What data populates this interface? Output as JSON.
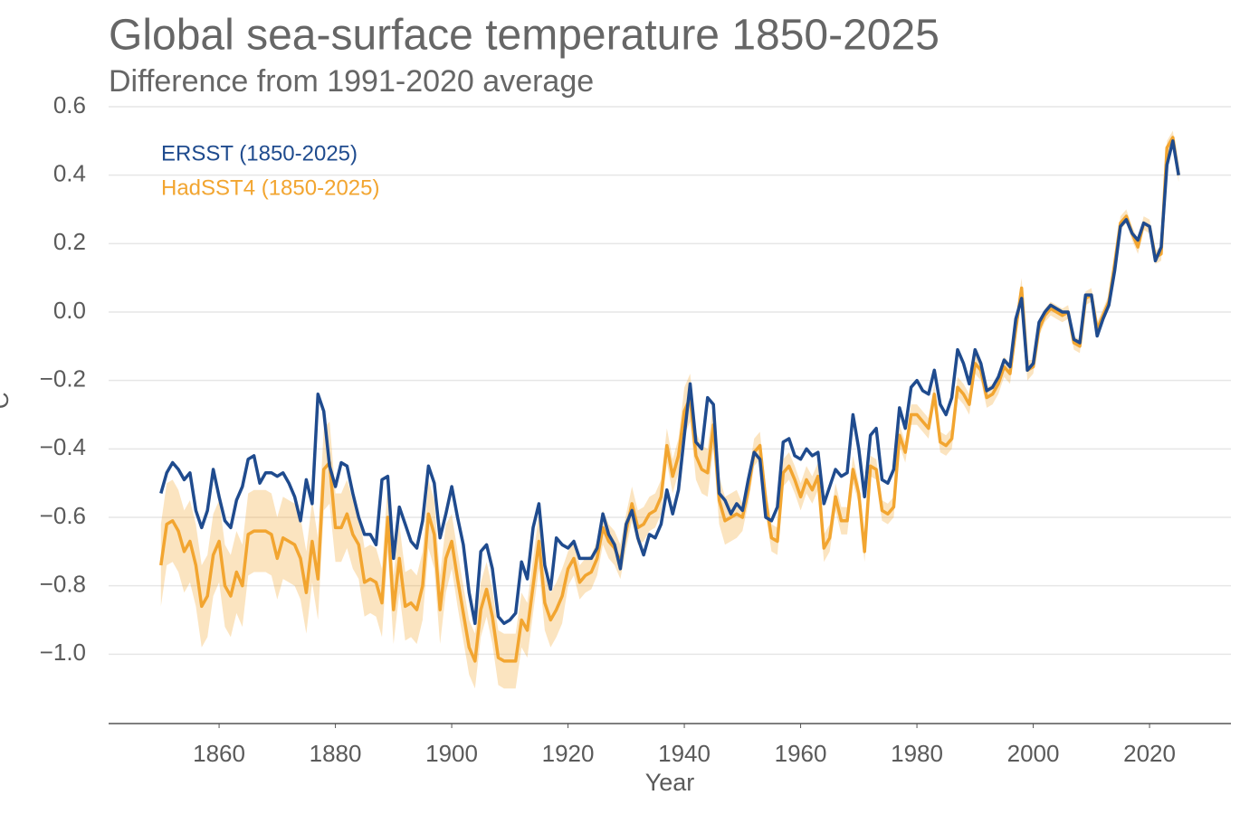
{
  "chart_data": {
    "type": "line",
    "title": "Global sea-surface temperature 1850-2025",
    "subtitle": "Difference from 1991-2020 average",
    "x_label": "Year",
    "y_label": "°C",
    "xlim": [
      1841,
      2034
    ],
    "ylim": [
      -1.2,
      0.6
    ],
    "xticks": [
      1860,
      1880,
      1900,
      1920,
      1940,
      1960,
      1980,
      2000,
      2020
    ],
    "yticks": [
      {
        "value": -1.0,
        "label": "−1.0"
      },
      {
        "value": -0.8,
        "label": "−0.8"
      },
      {
        "value": -0.6,
        "label": "−0.6"
      },
      {
        "value": -0.4,
        "label": "−0.4"
      },
      {
        "value": -0.2,
        "label": "−0.2"
      },
      {
        "value": 0,
        "label": "0.0"
      },
      0.2,
      0.4,
      0.6
    ],
    "grid": true,
    "legend": "top-left",
    "x": [
      1850,
      1851,
      1852,
      1853,
      1854,
      1855,
      1856,
      1857,
      1858,
      1859,
      1860,
      1861,
      1862,
      1863,
      1864,
      1865,
      1866,
      1867,
      1868,
      1869,
      1870,
      1871,
      1872,
      1873,
      1874,
      1875,
      1876,
      1877,
      1878,
      1879,
      1880,
      1881,
      1882,
      1883,
      1884,
      1885,
      1886,
      1887,
      1888,
      1889,
      1890,
      1891,
      1892,
      1893,
      1894,
      1895,
      1896,
      1897,
      1898,
      1899,
      1900,
      1901,
      1902,
      1903,
      1904,
      1905,
      1906,
      1907,
      1908,
      1909,
      1910,
      1911,
      1912,
      1913,
      1914,
      1915,
      1916,
      1917,
      1918,
      1919,
      1920,
      1921,
      1922,
      1923,
      1924,
      1925,
      1926,
      1927,
      1928,
      1929,
      1930,
      1931,
      1932,
      1933,
      1934,
      1935,
      1936,
      1937,
      1938,
      1939,
      1940,
      1941,
      1942,
      1943,
      1944,
      1945,
      1946,
      1947,
      1948,
      1949,
      1950,
      1951,
      1952,
      1953,
      1954,
      1955,
      1956,
      1957,
      1958,
      1959,
      1960,
      1961,
      1962,
      1963,
      1964,
      1965,
      1966,
      1967,
      1968,
      1969,
      1970,
      1971,
      1972,
      1973,
      1974,
      1975,
      1976,
      1977,
      1978,
      1979,
      1980,
      1981,
      1982,
      1983,
      1984,
      1985,
      1986,
      1987,
      1988,
      1989,
      1990,
      1991,
      1992,
      1993,
      1994,
      1995,
      1996,
      1997,
      1998,
      1999,
      2000,
      2001,
      2002,
      2003,
      2004,
      2005,
      2006,
      2007,
      2008,
      2009,
      2010,
      2011,
      2012,
      2013,
      2014,
      2015,
      2016,
      2017,
      2018,
      2019,
      2020,
      2021,
      2022,
      2023,
      2024,
      2025
    ],
    "series": [
      {
        "name": "ERSST (1850-2025)",
        "color": "#1f4b8e",
        "values": [
          -0.53,
          -0.47,
          -0.44,
          -0.46,
          -0.49,
          -0.47,
          -0.58,
          -0.63,
          -0.58,
          -0.46,
          -0.54,
          -0.61,
          -0.63,
          -0.55,
          -0.51,
          -0.43,
          -0.42,
          -0.5,
          -0.47,
          -0.47,
          -0.48,
          -0.47,
          -0.5,
          -0.54,
          -0.61,
          -0.49,
          -0.56,
          -0.24,
          -0.29,
          -0.45,
          -0.51,
          -0.44,
          -0.45,
          -0.53,
          -0.6,
          -0.65,
          -0.65,
          -0.68,
          -0.49,
          -0.48,
          -0.72,
          -0.57,
          -0.62,
          -0.67,
          -0.69,
          -0.61,
          -0.45,
          -0.5,
          -0.66,
          -0.59,
          -0.51,
          -0.6,
          -0.68,
          -0.82,
          -0.91,
          -0.7,
          -0.68,
          -0.75,
          -0.89,
          -0.91,
          -0.9,
          -0.88,
          -0.73,
          -0.78,
          -0.63,
          -0.56,
          -0.74,
          -0.81,
          -0.66,
          -0.68,
          -0.69,
          -0.67,
          -0.72,
          -0.72,
          -0.72,
          -0.69,
          -0.59,
          -0.65,
          -0.68,
          -0.75,
          -0.62,
          -0.58,
          -0.66,
          -0.71,
          -0.65,
          -0.66,
          -0.62,
          -0.52,
          -0.59,
          -0.52,
          -0.36,
          -0.21,
          -0.38,
          -0.4,
          -0.25,
          -0.27,
          -0.53,
          -0.55,
          -0.59,
          -0.56,
          -0.58,
          -0.49,
          -0.41,
          -0.43,
          -0.6,
          -0.61,
          -0.57,
          -0.38,
          -0.37,
          -0.42,
          -0.43,
          -0.4,
          -0.42,
          -0.41,
          -0.56,
          -0.51,
          -0.46,
          -0.48,
          -0.47,
          -0.3,
          -0.4,
          -0.54,
          -0.36,
          -0.34,
          -0.49,
          -0.5,
          -0.46,
          -0.28,
          -0.34,
          -0.22,
          -0.2,
          -0.23,
          -0.24,
          -0.17,
          -0.27,
          -0.3,
          -0.25,
          -0.11,
          -0.15,
          -0.21,
          -0.11,
          -0.15,
          -0.23,
          -0.22,
          -0.19,
          -0.14,
          -0.16,
          -0.02,
          0.04,
          -0.17,
          -0.15,
          -0.03,
          0.0,
          0.02,
          0.01,
          0.0,
          0.0,
          -0.08,
          -0.09,
          0.05,
          0.05,
          -0.07,
          -0.02,
          0.02,
          0.12,
          0.25,
          0.27,
          0.23,
          0.21,
          0.26,
          0.25,
          0.15,
          0.19,
          0.43,
          0.5,
          0.4
        ]
      },
      {
        "name": "HadSST4 (1850-2025)",
        "color": "#f2a530",
        "values": [
          -0.74,
          -0.62,
          -0.61,
          -0.64,
          -0.7,
          -0.67,
          -0.74,
          -0.86,
          -0.83,
          -0.71,
          -0.67,
          -0.8,
          -0.83,
          -0.76,
          -0.8,
          -0.65,
          -0.64,
          -0.64,
          -0.64,
          -0.65,
          -0.72,
          -0.66,
          -0.67,
          -0.68,
          -0.72,
          -0.82,
          -0.67,
          -0.78,
          -0.46,
          -0.44,
          -0.63,
          -0.63,
          -0.59,
          -0.65,
          -0.68,
          -0.79,
          -0.78,
          -0.79,
          -0.85,
          -0.6,
          -0.87,
          -0.72,
          -0.86,
          -0.85,
          -0.87,
          -0.8,
          -0.59,
          -0.65,
          -0.87,
          -0.72,
          -0.67,
          -0.78,
          -0.88,
          -0.98,
          -1.02,
          -0.87,
          -0.81,
          -0.89,
          -1.01,
          -1.02,
          -1.02,
          -1.02,
          -0.9,
          -0.93,
          -0.8,
          -0.67,
          -0.85,
          -0.9,
          -0.87,
          -0.83,
          -0.75,
          -0.72,
          -0.79,
          -0.77,
          -0.76,
          -0.72,
          -0.63,
          -0.67,
          -0.69,
          -0.73,
          -0.64,
          -0.56,
          -0.63,
          -0.62,
          -0.59,
          -0.58,
          -0.54,
          -0.39,
          -0.48,
          -0.42,
          -0.29,
          -0.25,
          -0.42,
          -0.46,
          -0.47,
          -0.33,
          -0.55,
          -0.61,
          -0.6,
          -0.59,
          -0.6,
          -0.52,
          -0.41,
          -0.39,
          -0.55,
          -0.66,
          -0.67,
          -0.47,
          -0.45,
          -0.49,
          -0.54,
          -0.49,
          -0.52,
          -0.48,
          -0.69,
          -0.66,
          -0.54,
          -0.61,
          -0.61,
          -0.46,
          -0.53,
          -0.7,
          -0.45,
          -0.46,
          -0.58,
          -0.59,
          -0.57,
          -0.36,
          -0.41,
          -0.3,
          -0.3,
          -0.32,
          -0.34,
          -0.24,
          -0.38,
          -0.39,
          -0.37,
          -0.22,
          -0.24,
          -0.27,
          -0.15,
          -0.17,
          -0.25,
          -0.24,
          -0.21,
          -0.16,
          -0.18,
          -0.05,
          0.07,
          -0.17,
          -0.16,
          -0.05,
          -0.01,
          0.01,
          0.0,
          -0.01,
          0.0,
          -0.09,
          -0.1,
          0.04,
          0.05,
          -0.05,
          -0.01,
          0.03,
          0.14,
          0.26,
          0.28,
          0.23,
          0.19,
          0.26,
          0.25,
          0.16,
          0.17,
          0.48,
          0.51,
          0.4
        ],
        "error": [
          0.12,
          0.12,
          0.12,
          0.12,
          0.12,
          0.12,
          0.12,
          0.12,
          0.12,
          0.12,
          0.12,
          0.12,
          0.12,
          0.12,
          0.12,
          0.12,
          0.12,
          0.12,
          0.12,
          0.12,
          0.12,
          0.12,
          0.12,
          0.12,
          0.12,
          0.12,
          0.12,
          0.12,
          0.12,
          0.12,
          0.1,
          0.1,
          0.1,
          0.1,
          0.1,
          0.1,
          0.1,
          0.1,
          0.1,
          0.1,
          0.1,
          0.1,
          0.1,
          0.1,
          0.1,
          0.1,
          0.1,
          0.1,
          0.1,
          0.1,
          0.08,
          0.08,
          0.08,
          0.08,
          0.08,
          0.08,
          0.08,
          0.08,
          0.08,
          0.08,
          0.08,
          0.08,
          0.08,
          0.08,
          0.08,
          0.08,
          0.08,
          0.08,
          0.08,
          0.08,
          0.05,
          0.05,
          0.05,
          0.05,
          0.05,
          0.05,
          0.05,
          0.05,
          0.05,
          0.05,
          0.05,
          0.05,
          0.05,
          0.05,
          0.05,
          0.05,
          0.05,
          0.05,
          0.05,
          0.05,
          0.07,
          0.07,
          0.07,
          0.07,
          0.07,
          0.07,
          0.07,
          0.07,
          0.07,
          0.07,
          0.04,
          0.04,
          0.04,
          0.04,
          0.04,
          0.04,
          0.04,
          0.04,
          0.04,
          0.04,
          0.04,
          0.04,
          0.04,
          0.04,
          0.04,
          0.04,
          0.04,
          0.04,
          0.04,
          0.04,
          0.03,
          0.03,
          0.03,
          0.03,
          0.03,
          0.03,
          0.03,
          0.03,
          0.03,
          0.03,
          0.03,
          0.03,
          0.03,
          0.03,
          0.03,
          0.03,
          0.03,
          0.03,
          0.03,
          0.03,
          0.03,
          0.03,
          0.03,
          0.03,
          0.03,
          0.03,
          0.03,
          0.03,
          0.03,
          0.03,
          0.02,
          0.02,
          0.02,
          0.02,
          0.02,
          0.02,
          0.02,
          0.02,
          0.02,
          0.02,
          0.02,
          0.02,
          0.02,
          0.02,
          0.02,
          0.02,
          0.02,
          0.02,
          0.02,
          0.02,
          0.02,
          0.02,
          0.02,
          0.02,
          0.02,
          0.02
        ]
      }
    ]
  }
}
